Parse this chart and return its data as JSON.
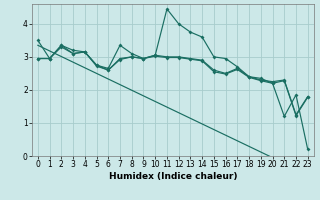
{
  "xlabel": "Humidex (Indice chaleur)",
  "bg_color": "#cce8e8",
  "grid_color": "#a8cccc",
  "line_color": "#1a6e62",
  "x_values": [
    0,
    1,
    2,
    3,
    4,
    5,
    6,
    7,
    8,
    9,
    10,
    11,
    12,
    13,
    14,
    15,
    16,
    17,
    18,
    19,
    20,
    21,
    22,
    23
  ],
  "series_jagged": [
    3.5,
    2.95,
    3.35,
    3.2,
    3.15,
    2.75,
    2.65,
    3.35,
    3.1,
    2.95,
    3.05,
    4.45,
    4.0,
    3.75,
    3.6,
    3.0,
    2.95,
    2.7,
    2.4,
    2.35,
    2.2,
    1.2,
    1.85,
    0.2
  ],
  "series_flat1": [
    2.95,
    2.95,
    3.3,
    3.1,
    3.15,
    2.75,
    2.6,
    2.95,
    3.0,
    2.95,
    3.05,
    3.0,
    3.0,
    2.95,
    2.9,
    2.6,
    2.5,
    2.65,
    2.4,
    2.3,
    2.25,
    2.3,
    1.25,
    1.8
  ],
  "series_flat2": [
    2.95,
    2.95,
    3.35,
    3.1,
    3.15,
    2.72,
    2.6,
    2.92,
    3.0,
    2.95,
    3.02,
    2.98,
    2.98,
    2.93,
    2.88,
    2.55,
    2.48,
    2.62,
    2.38,
    2.28,
    2.2,
    2.28,
    1.22,
    1.78
  ],
  "series_linear": [
    3.35,
    3.18,
    3.01,
    2.84,
    2.67,
    2.5,
    2.33,
    2.16,
    1.99,
    1.82,
    1.65,
    1.48,
    1.31,
    1.14,
    0.97,
    0.8,
    0.63,
    0.46,
    0.29,
    0.12,
    -0.05,
    -0.22,
    -0.39,
    -0.56
  ],
  "ylim": [
    0,
    4.6
  ],
  "xlim": [
    -0.5,
    23.5
  ],
  "yticks": [
    0,
    1,
    2,
    3,
    4
  ],
  "xticks": [
    0,
    1,
    2,
    3,
    4,
    5,
    6,
    7,
    8,
    9,
    10,
    11,
    12,
    13,
    14,
    15,
    16,
    17,
    18,
    19,
    20,
    21,
    22,
    23
  ],
  "tick_fontsize": 5.5,
  "xlabel_fontsize": 6.5
}
